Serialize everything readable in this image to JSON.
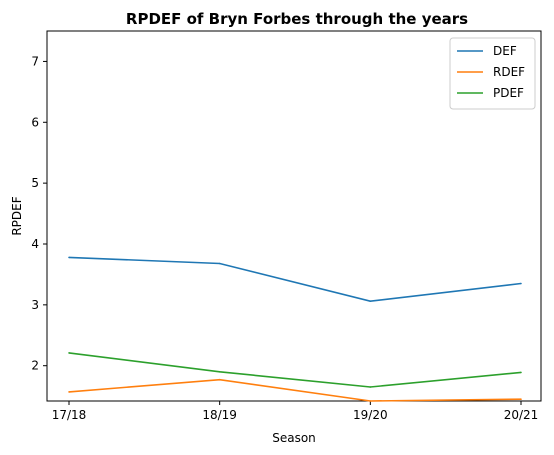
{
  "chart_data": {
    "type": "line",
    "title": "RPDEF of Bryn Forbes through the years",
    "xlabel": "Season",
    "ylabel": "RPDEF",
    "categories": [
      "17/18",
      "18/19",
      "19/20",
      "20/21"
    ],
    "ylim": [
      1.42,
      7.5
    ],
    "yticks": [
      2,
      3,
      4,
      5,
      6,
      7
    ],
    "grid": false,
    "legend_position": "top-right",
    "series": [
      {
        "name": "DEF",
        "color": "#1f77b4",
        "values": [
          3.78,
          3.68,
          3.06,
          3.35
        ]
      },
      {
        "name": "RDEF",
        "color": "#ff7f0e",
        "values": [
          1.57,
          1.77,
          1.42,
          1.45
        ]
      },
      {
        "name": "PDEF",
        "color": "#2ca02c",
        "values": [
          2.21,
          1.9,
          1.65,
          1.89
        ]
      }
    ]
  }
}
